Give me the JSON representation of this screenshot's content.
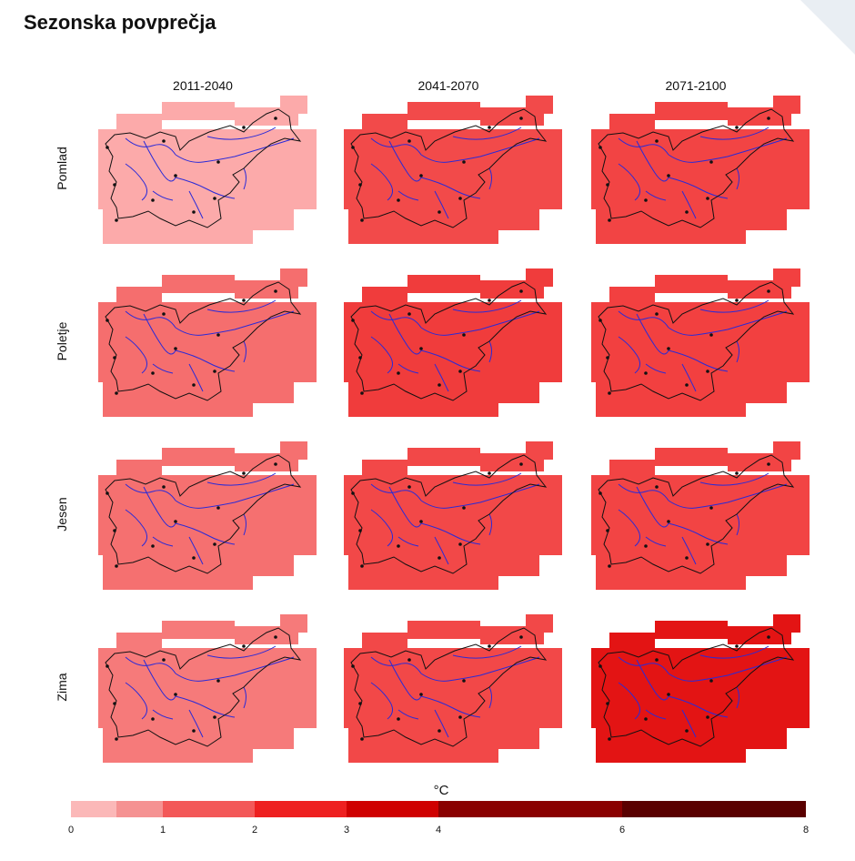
{
  "title": "Sezonska povprečja",
  "periods": [
    "2011-2040",
    "2041-2070",
    "2071-2100"
  ],
  "seasons": [
    "Pomlad",
    "Poletje",
    "Jesen",
    "Zima"
  ],
  "map_fills": [
    [
      "#fcaaaa",
      "#f24a4a",
      "#f24444"
    ],
    [
      "#f56e6e",
      "#f03c3c",
      "#f24040"
    ],
    [
      "#f57070",
      "#f24848",
      "#f24444"
    ],
    [
      "#f67a7a",
      "#f24848",
      "#e31414"
    ]
  ],
  "map_icons": {
    "border": "slovenia-border-outline",
    "rivers": "river-lines",
    "cities": "city-dots"
  },
  "legend": {
    "title": "°C",
    "ticks": [
      "0",
      "1",
      "2",
      "3",
      "4",
      "6",
      "8"
    ],
    "bins": [
      {
        "from": 0,
        "to": 0.5,
        "color": "#fbb8b8"
      },
      {
        "from": 0.5,
        "to": 1,
        "color": "#f59292"
      },
      {
        "from": 1,
        "to": 2,
        "color": "#f35858"
      },
      {
        "from": 2,
        "to": 3,
        "color": "#ee2020"
      },
      {
        "from": 3,
        "to": 4,
        "color": "#cf0000"
      },
      {
        "from": 4,
        "to": 6,
        "color": "#8a0000"
      },
      {
        "from": 6,
        "to": 8,
        "color": "#5a0000"
      }
    ]
  }
}
